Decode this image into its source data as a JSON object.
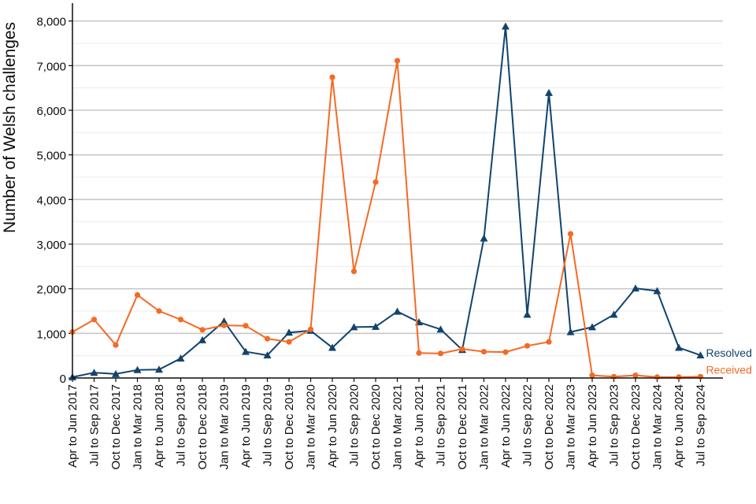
{
  "chart_data": {
    "type": "line",
    "ylabel": "Number of Welsh challenges",
    "xlabel": "",
    "ylim": [
      0,
      8400
    ],
    "yticks": [
      0,
      1000,
      2000,
      3000,
      4000,
      5000,
      6000,
      7000,
      8000
    ],
    "ytick_labels": [
      "0",
      "1,000",
      "2,000",
      "3,000",
      "4,000",
      "5,000",
      "6,000",
      "7,000",
      "8,000"
    ],
    "grid": true,
    "categories": [
      "Apr to Jun 2017",
      "Jul to Sep 2017",
      "Oct to Dec 2017",
      "Jan to Mar 2018",
      "Apr to Jun 2018",
      "Jul to Sep 2018",
      "Oct to Dec 2018",
      "Jan to Mar 2019",
      "Apr to Jun 2019",
      "Jul to Sep 2019",
      "Oct to Dec 2019",
      "Jan to Mar 2020",
      "Apr to Jun 2020",
      "Jul to Sep 2020",
      "Oct to Dec 2020",
      "Jan to Mar 2021",
      "Apr to Jun 2021",
      "Jul to Sep 2021",
      "Oct to Dec 2021",
      "Jan to Mar 2022",
      "Apr to Jun 2022",
      "Jul to Sep 2022",
      "Oct to Dec 2022",
      "Jan to Mar 2023",
      "Apr to Jun 2023",
      "Jul to Sep 2023",
      "Oct to Dec 2023",
      "Jan to Mar 2024",
      "Apr to Jun 2024",
      "Jul to Sep 2024"
    ],
    "series": [
      {
        "name": "Resolved",
        "color": "#12436d",
        "marker": "triangle",
        "values": [
          20,
          120,
          90,
          180,
          190,
          440,
          850,
          1270,
          590,
          510,
          1020,
          1060,
          680,
          1140,
          1150,
          1490,
          1250,
          1090,
          630,
          3130,
          7880,
          1420,
          6390,
          1030,
          1140,
          1420,
          2010,
          1950,
          680,
          510
        ]
      },
      {
        "name": "Received",
        "color": "#f46a25",
        "marker": "circle",
        "values": [
          1030,
          1310,
          740,
          1860,
          1500,
          1310,
          1080,
          1180,
          1170,
          880,
          810,
          1090,
          6740,
          2390,
          4390,
          7110,
          560,
          550,
          650,
          590,
          580,
          720,
          810,
          3230,
          60,
          30,
          60,
          20,
          20,
          30
        ]
      }
    ]
  }
}
